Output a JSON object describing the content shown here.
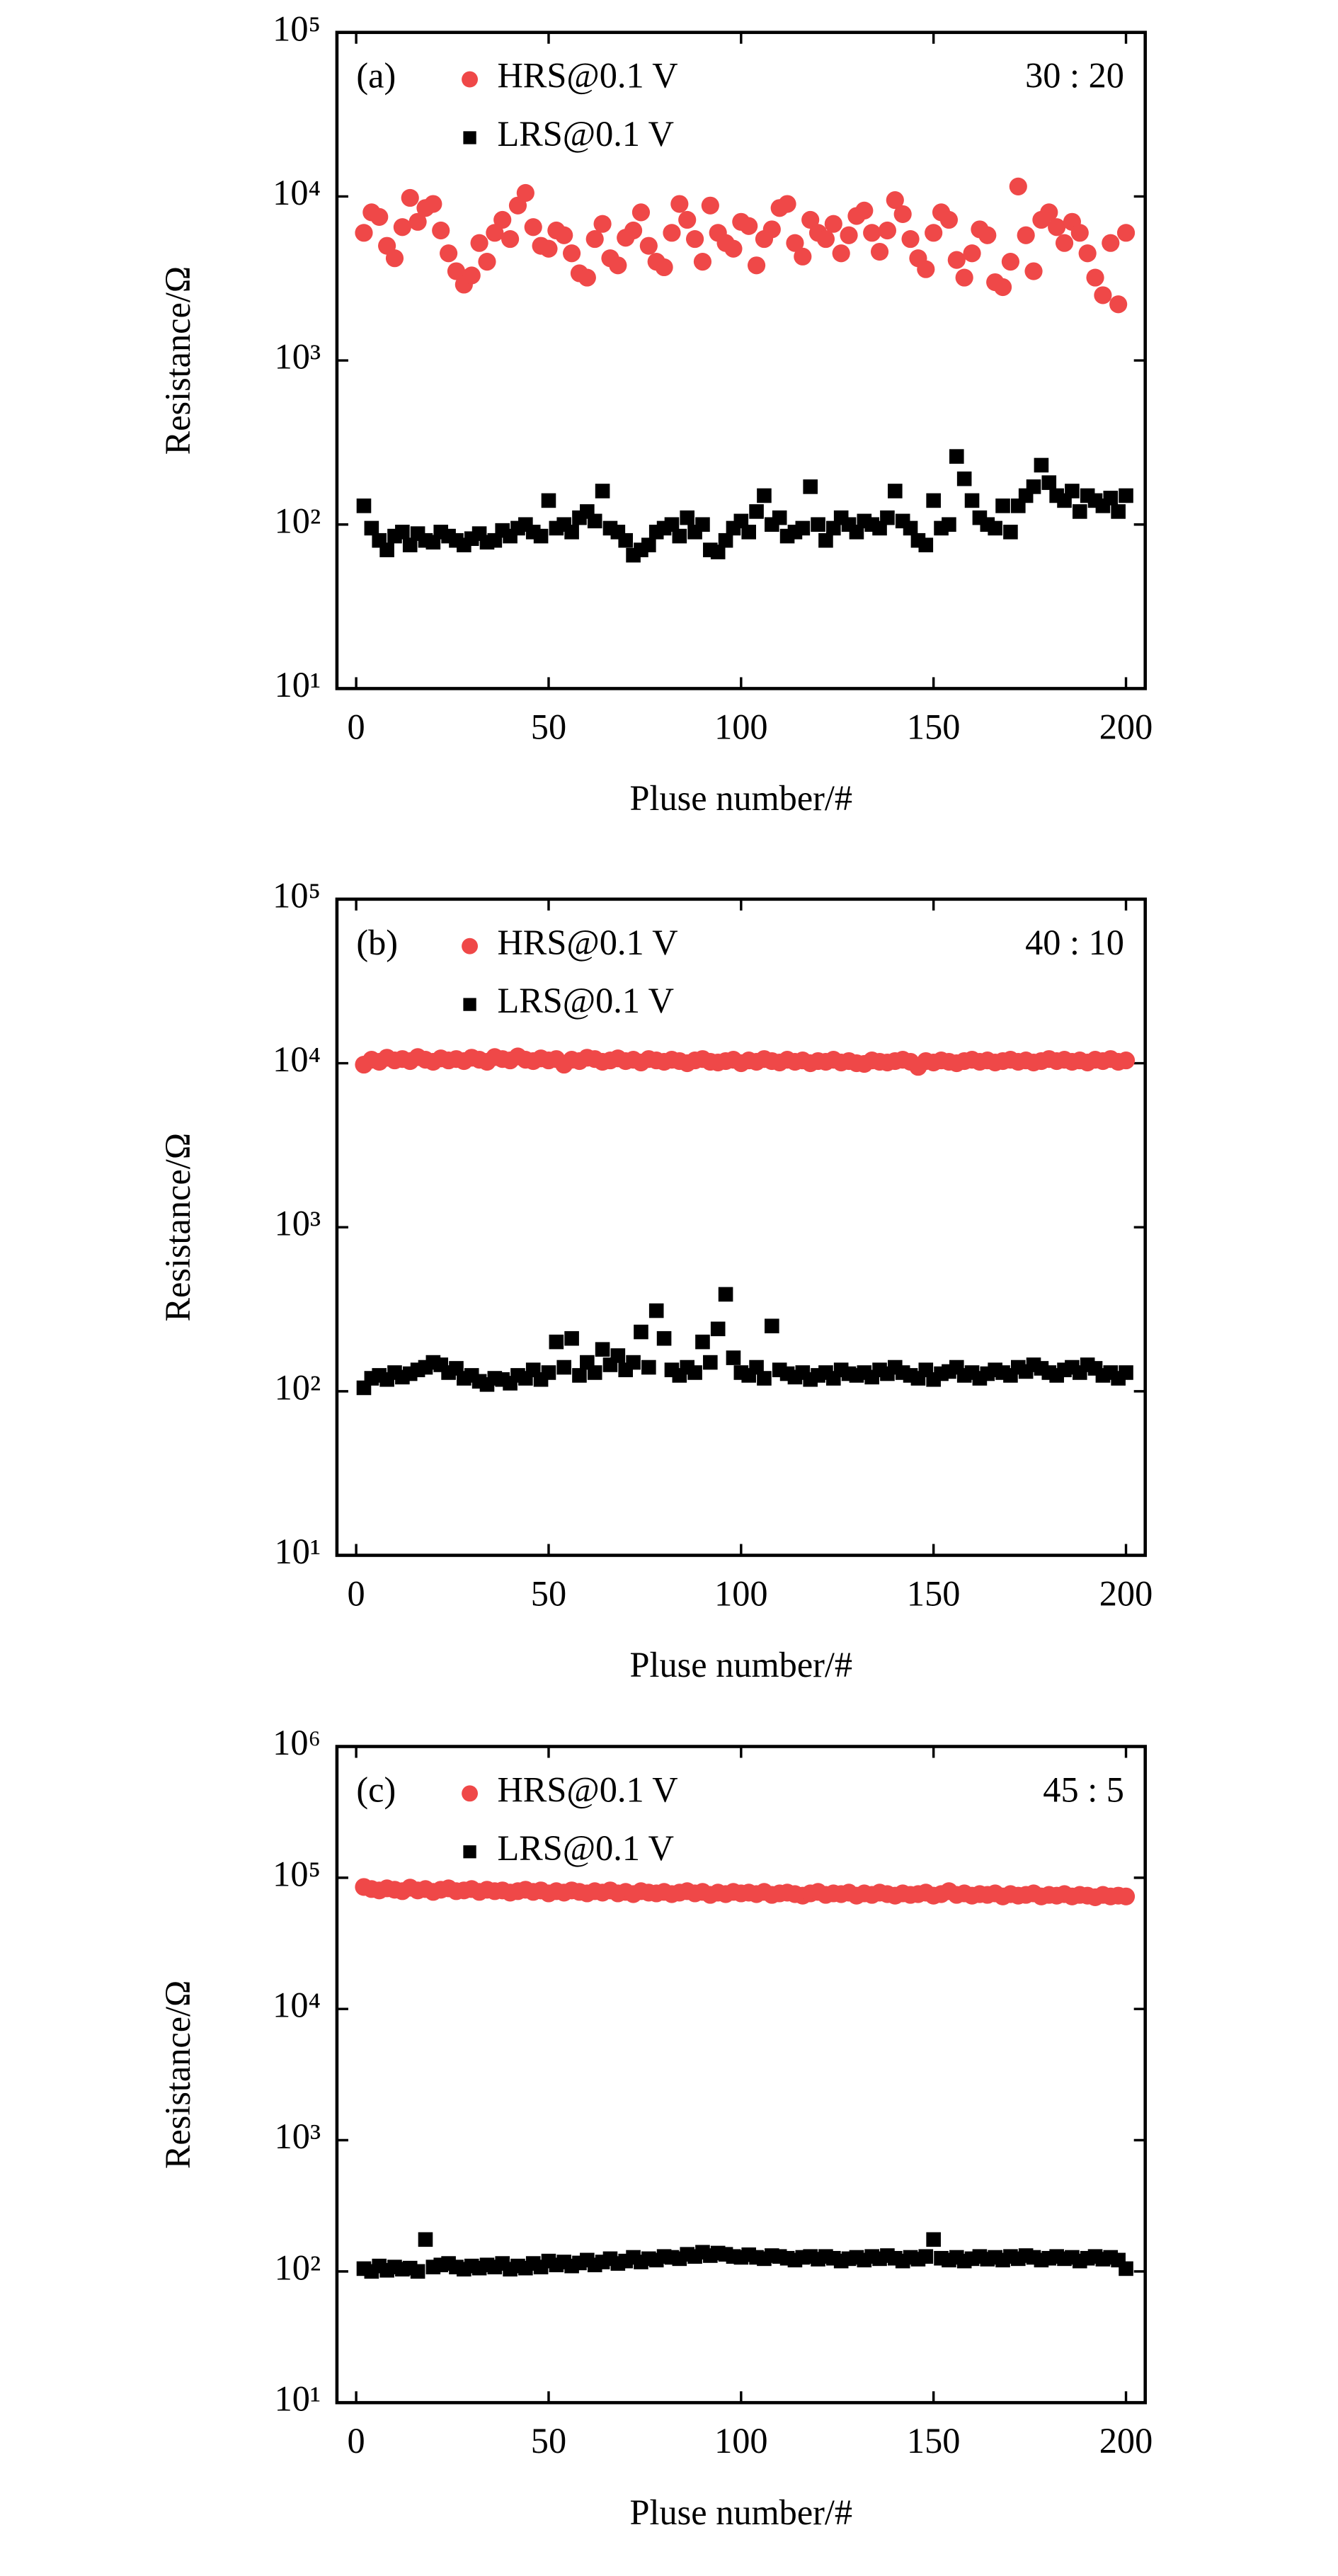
{
  "chart_data": [
    {
      "type": "scatter",
      "label": "(a)",
      "annotation": "30 : 20",
      "x_label": "Pluse number/#",
      "y_label": "Resistance/Ω",
      "log_y": true,
      "legend": "upper left",
      "xlim": [
        -5,
        205
      ],
      "xticks": [
        0,
        50,
        100,
        150,
        200
      ],
      "ylim": [
        10,
        100000
      ],
      "yticks": [
        {
          "value": 10,
          "label": "10¹"
        },
        {
          "value": 100,
          "label": "10²"
        },
        {
          "value": 1000,
          "label": "10³"
        },
        {
          "value": 10000,
          "label": "10⁴"
        },
        {
          "value": 100000,
          "label": "10⁵"
        }
      ],
      "x": [
        2,
        4,
        6,
        8,
        10,
        12,
        14,
        16,
        18,
        20,
        22,
        24,
        26,
        28,
        30,
        32,
        34,
        36,
        38,
        40,
        42,
        44,
        46,
        48,
        50,
        52,
        54,
        56,
        58,
        60,
        62,
        64,
        66,
        68,
        70,
        72,
        74,
        76,
        78,
        80,
        82,
        84,
        86,
        88,
        90,
        92,
        94,
        96,
        98,
        100,
        102,
        104,
        106,
        108,
        110,
        112,
        114,
        116,
        118,
        120,
        122,
        124,
        126,
        128,
        130,
        132,
        134,
        136,
        138,
        140,
        142,
        144,
        146,
        148,
        150,
        152,
        154,
        156,
        158,
        160,
        162,
        164,
        166,
        168,
        170,
        172,
        174,
        176,
        178,
        180,
        182,
        184,
        186,
        188,
        190,
        192,
        194,
        196,
        198,
        200
      ],
      "series": [
        {
          "name": "HRS@0.1 V",
          "color": "#ef4848",
          "marker": "circle",
          "values": [
            6000,
            8000,
            7500,
            5000,
            4200,
            6500,
            9800,
            7000,
            8500,
            9000,
            6200,
            4500,
            3500,
            2900,
            3300,
            5200,
            4000,
            6000,
            7200,
            5500,
            8800,
            10500,
            6500,
            5000,
            4800,
            6200,
            5800,
            4500,
            3400,
            3200,
            5500,
            6800,
            4200,
            3800,
            5600,
            6200,
            8000,
            5000,
            4000,
            3700,
            6000,
            9000,
            7200,
            5500,
            4000,
            8800,
            6000,
            5200,
            4800,
            7000,
            6600,
            3800,
            5500,
            6300,
            8500,
            9000,
            5200,
            4300,
            7200,
            6000,
            5500,
            6800,
            4500,
            5800,
            7600,
            8200,
            6000,
            4600,
            6200,
            9500,
            7800,
            5500,
            4200,
            3600,
            6000,
            8000,
            7200,
            4100,
            3200,
            4500,
            6300,
            5800,
            3000,
            2800,
            4000,
            11500,
            5800,
            3500,
            7200,
            8000,
            6500,
            5200,
            7000,
            6000,
            4500,
            3200,
            2500,
            5200,
            2200,
            6000
          ]
        },
        {
          "name": "LRS@0.1 V",
          "color": "#000000",
          "marker": "square",
          "values": [
            130,
            95,
            80,
            70,
            85,
            90,
            75,
            88,
            80,
            78,
            90,
            85,
            80,
            75,
            82,
            88,
            78,
            80,
            92,
            85,
            95,
            100,
            90,
            85,
            140,
            95,
            100,
            90,
            110,
            120,
            105,
            160,
            95,
            90,
            80,
            65,
            70,
            75,
            90,
            95,
            100,
            85,
            110,
            90,
            100,
            70,
            68,
            80,
            95,
            105,
            90,
            120,
            150,
            100,
            110,
            85,
            90,
            95,
            170,
            100,
            80,
            95,
            110,
            100,
            90,
            105,
            100,
            95,
            110,
            160,
            105,
            95,
            80,
            75,
            140,
            95,
            100,
            260,
            190,
            140,
            110,
            100,
            95,
            130,
            90,
            130,
            150,
            170,
            230,
            180,
            150,
            140,
            160,
            120,
            150,
            140,
            130,
            145,
            120,
            150
          ]
        }
      ]
    },
    {
      "type": "scatter",
      "label": "(b)",
      "annotation": "40 : 10",
      "x_label": "Pluse number/#",
      "y_label": "Resistance/Ω",
      "log_y": true,
      "legend": "upper left",
      "xlim": [
        -5,
        205
      ],
      "xticks": [
        0,
        50,
        100,
        150,
        200
      ],
      "ylim": [
        10,
        100000
      ],
      "yticks": [
        {
          "value": 10,
          "label": "10¹"
        },
        {
          "value": 100,
          "label": "10²"
        },
        {
          "value": 1000,
          "label": "10³"
        },
        {
          "value": 10000,
          "label": "10⁴"
        },
        {
          "value": 100000,
          "label": "10⁵"
        }
      ],
      "x": [
        2,
        4,
        6,
        8,
        10,
        12,
        14,
        16,
        18,
        20,
        22,
        24,
        26,
        28,
        30,
        32,
        34,
        36,
        38,
        40,
        42,
        44,
        46,
        48,
        50,
        52,
        54,
        56,
        58,
        60,
        62,
        64,
        66,
        68,
        70,
        72,
        74,
        76,
        78,
        80,
        82,
        84,
        86,
        88,
        90,
        92,
        94,
        96,
        98,
        100,
        102,
        104,
        106,
        108,
        110,
        112,
        114,
        116,
        118,
        120,
        122,
        124,
        126,
        128,
        130,
        132,
        134,
        136,
        138,
        140,
        142,
        144,
        146,
        148,
        150,
        152,
        154,
        156,
        158,
        160,
        162,
        164,
        166,
        168,
        170,
        172,
        174,
        176,
        178,
        180,
        182,
        184,
        186,
        188,
        190,
        192,
        194,
        196,
        198,
        200
      ],
      "series": [
        {
          "name": "HRS@0.1 V",
          "color": "#ef4848",
          "marker": "circle",
          "values": [
            9800,
            10500,
            10200,
            10800,
            10400,
            10600,
            10300,
            10900,
            10500,
            10200,
            10700,
            10400,
            10600,
            10300,
            10800,
            10500,
            10200,
            10900,
            10600,
            10400,
            11000,
            10500,
            10300,
            10700,
            10400,
            10600,
            9800,
            10500,
            10300,
            10800,
            10600,
            10200,
            10400,
            10700,
            10300,
            10500,
            10100,
            10600,
            10400,
            10200,
            10500,
            10300,
            10000,
            10400,
            10600,
            10200,
            10100,
            10300,
            10500,
            10000,
            10400,
            10200,
            10600,
            10300,
            10100,
            10500,
            10200,
            10400,
            10000,
            10300,
            10200,
            10500,
            10100,
            10300,
            10000,
            9900,
            10400,
            10200,
            10100,
            10300,
            10500,
            10200,
            9500,
            10300,
            10100,
            10400,
            10200,
            10000,
            10300,
            10500,
            10200,
            10400,
            10100,
            10300,
            10500,
            10200,
            10400,
            10100,
            10300,
            10600,
            10300,
            10500,
            10200,
            10400,
            10100,
            10500,
            10300,
            10600,
            10200,
            10400
          ]
        },
        {
          "name": "LRS@0.1 V",
          "color": "#000000",
          "marker": "square",
          "values": [
            105,
            120,
            125,
            118,
            130,
            122,
            128,
            135,
            140,
            150,
            145,
            130,
            138,
            120,
            125,
            115,
            110,
            120,
            118,
            112,
            125,
            120,
            135,
            118,
            130,
            200,
            140,
            210,
            125,
            150,
            130,
            180,
            145,
            165,
            135,
            150,
            230,
            140,
            310,
            210,
            135,
            125,
            140,
            130,
            200,
            150,
            240,
            390,
            160,
            130,
            125,
            140,
            120,
            250,
            135,
            128,
            122,
            130,
            118,
            125,
            130,
            120,
            135,
            128,
            125,
            130,
            122,
            135,
            128,
            140,
            130,
            125,
            120,
            135,
            118,
            128,
            132,
            140,
            125,
            130,
            120,
            128,
            135,
            130,
            125,
            140,
            132,
            145,
            138,
            130,
            125,
            135,
            140,
            130,
            145,
            138,
            125,
            130,
            120,
            130
          ]
        }
      ]
    },
    {
      "type": "scatter",
      "label": "(c)",
      "annotation": "45 : 5",
      "x_label": "Pluse number/#",
      "y_label": "Resistance/Ω",
      "log_y": true,
      "legend": "upper left",
      "xlim": [
        -5,
        205
      ],
      "xticks": [
        0,
        50,
        100,
        150,
        200
      ],
      "ylim": [
        10,
        1000000
      ],
      "yticks": [
        {
          "value": 10,
          "label": "10¹"
        },
        {
          "value": 100,
          "label": "10²"
        },
        {
          "value": 1000,
          "label": "10³"
        },
        {
          "value": 10000,
          "label": "10⁴"
        },
        {
          "value": 100000,
          "label": "10⁵"
        },
        {
          "value": 1000000,
          "label": "10⁶"
        }
      ],
      "x": [
        2,
        4,
        6,
        8,
        10,
        12,
        14,
        16,
        18,
        20,
        22,
        24,
        26,
        28,
        30,
        32,
        34,
        36,
        38,
        40,
        42,
        44,
        46,
        48,
        50,
        52,
        54,
        56,
        58,
        60,
        62,
        64,
        66,
        68,
        70,
        72,
        74,
        76,
        78,
        80,
        82,
        84,
        86,
        88,
        90,
        92,
        94,
        96,
        98,
        100,
        102,
        104,
        106,
        108,
        110,
        112,
        114,
        116,
        118,
        120,
        122,
        124,
        126,
        128,
        130,
        132,
        134,
        136,
        138,
        140,
        142,
        144,
        146,
        148,
        150,
        152,
        154,
        156,
        158,
        160,
        162,
        164,
        166,
        168,
        170,
        172,
        174,
        176,
        178,
        180,
        182,
        184,
        186,
        188,
        190,
        192,
        194,
        196,
        198,
        200
      ],
      "series": [
        {
          "name": "HRS@0.1 V",
          "color": "#ef4848",
          "marker": "circle",
          "values": [
            85000,
            82000,
            80000,
            83000,
            81000,
            79000,
            84000,
            80000,
            82000,
            78000,
            81000,
            83000,
            79000,
            80000,
            82000,
            78000,
            81000,
            79000,
            80000,
            77000,
            79000,
            81000,
            78000,
            80000,
            76000,
            79000,
            77000,
            80000,
            78000,
            76000,
            79000,
            77000,
            80000,
            76000,
            78000,
            75000,
            79000,
            77000,
            76000,
            78000,
            75000,
            77000,
            79000,
            76000,
            78000,
            74000,
            77000,
            75000,
            78000,
            76000,
            77000,
            75000,
            78000,
            74000,
            76000,
            77000,
            75000,
            73000,
            76000,
            78000,
            74000,
            76000,
            75000,
            77000,
            73000,
            76000,
            74000,
            77000,
            75000,
            73000,
            76000,
            74000,
            75000,
            77000,
            73000,
            75000,
            79000,
            74000,
            76000,
            73000,
            75000,
            74000,
            76000,
            72000,
            75000,
            73000,
            74000,
            76000,
            72000,
            74000,
            73000,
            75000,
            72000,
            74000,
            73000,
            71000,
            74000,
            72000,
            73000,
            72000
          ]
        },
        {
          "name": "LRS@0.1 V",
          "color": "#000000",
          "marker": "square",
          "values": [
            105,
            100,
            110,
            102,
            108,
            104,
            106,
            100,
            175,
            108,
            112,
            115,
            108,
            104,
            110,
            106,
            112,
            108,
            115,
            104,
            110,
            106,
            115,
            108,
            120,
            112,
            118,
            110,
            116,
            122,
            112,
            118,
            125,
            115,
            120,
            128,
            118,
            125,
            122,
            130,
            128,
            125,
            135,
            130,
            140,
            132,
            138,
            135,
            130,
            128,
            134,
            128,
            125,
            132,
            130,
            126,
            122,
            128,
            130,
            124,
            130,
            126,
            120,
            125,
            128,
            122,
            130,
            125,
            132,
            126,
            120,
            128,
            124,
            130,
            175,
            126,
            122,
            128,
            120,
            125,
            130,
            124,
            128,
            122,
            130,
            125,
            132,
            128,
            122,
            126,
            130,
            125,
            128,
            120,
            126,
            130,
            124,
            128,
            122,
            105
          ]
        }
      ]
    }
  ]
}
